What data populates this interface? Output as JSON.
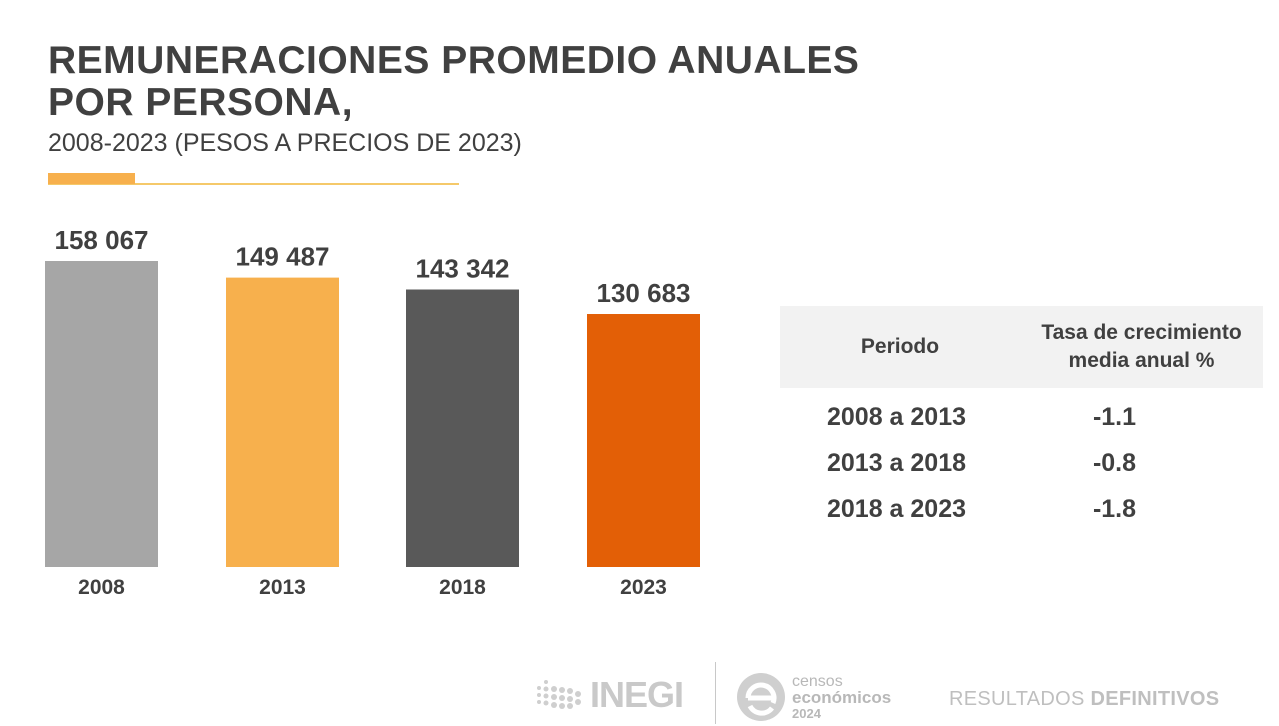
{
  "title_line1": "REMUNERACIONES PROMEDIO ANUALES",
  "title_line2": "POR PERSONA,",
  "subtitle": "2008-2023 (PESOS A PRECIOS DE 2023)",
  "chart_data": {
    "type": "bar",
    "categories": [
      "2008",
      "2013",
      "2018",
      "2023"
    ],
    "values": [
      158067,
      149487,
      143342,
      130683
    ],
    "value_labels": [
      "158 067",
      "149 487",
      "143 342",
      "130 683"
    ],
    "colors": [
      "#a6a6a6",
      "#f7b04d",
      "#595959",
      "#e35f06"
    ],
    "title": "REMUNERACIONES PROMEDIO ANUALES POR PERSONA,",
    "subtitle": "2008-2023 (PESOS A PRECIOS DE 2023)",
    "xlabel": "",
    "ylabel": "",
    "grid": false
  },
  "table": {
    "header_period": "Periodo",
    "header_rate_line1": "Tasa de crecimiento",
    "header_rate_line2": "media anual %",
    "rows": [
      {
        "period": "2008 a 2013",
        "rate": "-1.1"
      },
      {
        "period": "2013 a 2018",
        "rate": "-0.8"
      },
      {
        "period": "2018 a 2023",
        "rate": "-1.8"
      }
    ]
  },
  "footer": {
    "inegi": "INEGI",
    "censos_line1": "censos",
    "censos_line2": "económicos",
    "censos_line3": "2024",
    "resultados": "RESULTADOS",
    "definitivos": "DEFINITIVOS"
  }
}
